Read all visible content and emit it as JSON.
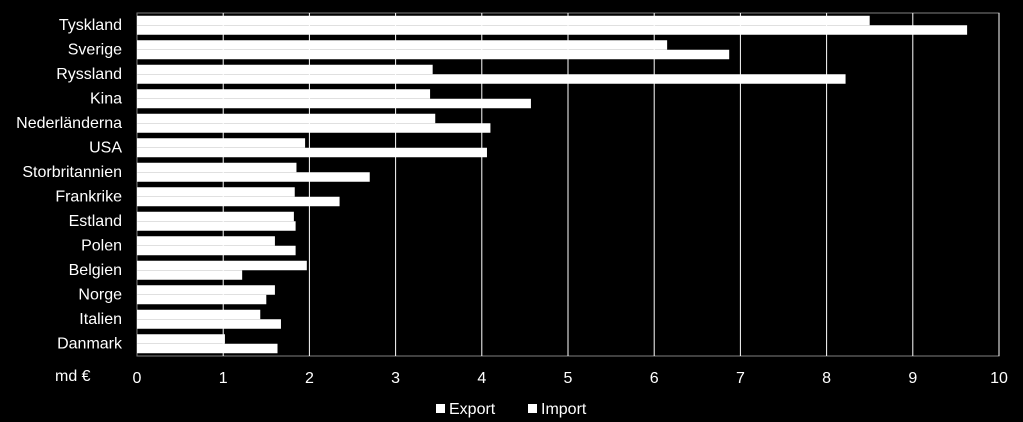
{
  "chart_data": {
    "type": "bar",
    "orientation": "horizontal",
    "categories": [
      "Tyskland",
      "Sverige",
      "Ryssland",
      "Kina",
      "Nederländerna",
      "USA",
      "Storbritannien",
      "Frankrike",
      "Estland",
      "Polen",
      "Belgien",
      "Norge",
      "Italien",
      "Danmark"
    ],
    "series": [
      {
        "name": "Export",
        "values": [
          8.5,
          6.15,
          3.43,
          3.4,
          3.46,
          1.95,
          1.85,
          1.83,
          1.82,
          1.6,
          1.97,
          1.6,
          1.43,
          1.02
        ]
      },
      {
        "name": "Import",
        "values": [
          9.63,
          6.87,
          8.22,
          4.57,
          4.1,
          4.06,
          2.7,
          2.35,
          1.84,
          1.84,
          1.22,
          1.5,
          1.67,
          1.63
        ]
      }
    ],
    "xlabel": "md €",
    "xlim": [
      0,
      10
    ],
    "xticks": [
      "0",
      "1",
      "2",
      "3",
      "4",
      "5",
      "6",
      "7",
      "8",
      "9",
      "10"
    ],
    "grid": true,
    "legend_position": "bottom",
    "colors": {
      "background": "#000000",
      "bars": "#ffffff",
      "plot_border": "#808080",
      "gridlines": "#ffffff",
      "text": "#ffffff"
    }
  }
}
